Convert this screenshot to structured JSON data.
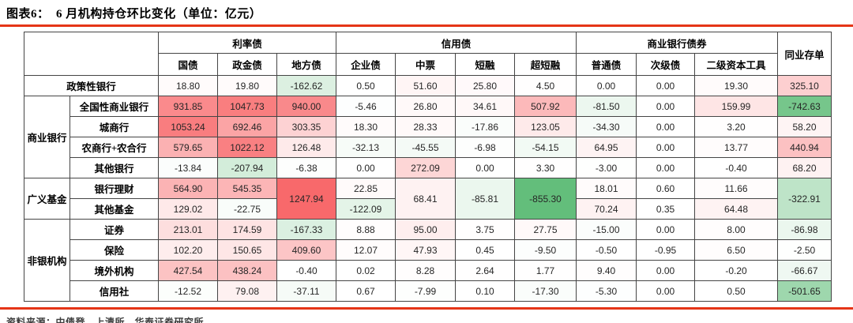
{
  "figure": {
    "title": "图表6：  6 月机构持仓环比变化（单位：亿元）",
    "source": "资料来源：中债登，上清所，华泰证券研究所",
    "rule_color": "#E53517"
  },
  "heatmap": {
    "positive_color": "#F8696B",
    "negative_color": "#63BE7B",
    "neutral_color": "#FFFFFF",
    "max_positive": 1247.94,
    "max_negative": -855.3
  },
  "table": {
    "col_groups": [
      {
        "label": "利率债",
        "span": 3
      },
      {
        "label": "信用债",
        "span": 4
      },
      {
        "label": "商业银行债券",
        "span": 3
      }
    ],
    "ncd_header": "同业存单",
    "sub_headers": [
      "国债",
      "政金债",
      "地方债",
      "企业债",
      "中票",
      "短融",
      "超短融",
      "普通债",
      "次级债",
      "二级资本工具"
    ],
    "rows": [
      {
        "label": "政策性银行",
        "label_colspan": 2,
        "values": [
          18.8,
          19.8,
          -162.62,
          0.5,
          51.6,
          25.8,
          4.5,
          0.0,
          0.0,
          19.3,
          325.1
        ]
      },
      {
        "group": {
          "label": "商业银行",
          "rowspan": 4
        },
        "label": "全国性商业银行",
        "values": [
          931.85,
          1047.73,
          940.0,
          -5.46,
          26.8,
          34.61,
          507.92,
          -81.5,
          0.0,
          159.99,
          -742.63
        ]
      },
      {
        "label": "城商行",
        "values": [
          1053.24,
          692.46,
          303.35,
          18.3,
          28.33,
          -17.86,
          123.05,
          -34.3,
          0.0,
          3.2,
          58.2
        ]
      },
      {
        "label": "农商行+农合行",
        "values": [
          579.65,
          1022.12,
          126.48,
          -32.13,
          -45.55,
          -6.98,
          -54.15,
          64.95,
          0.0,
          13.77,
          440.94
        ]
      },
      {
        "label": "其他银行",
        "values": [
          -13.84,
          -207.94,
          -6.38,
          0.0,
          272.09,
          0.0,
          3.3,
          -3.0,
          0.0,
          -0.4,
          68.2
        ]
      },
      {
        "group": {
          "label": "广义基金",
          "rowspan": 2
        },
        "label": "银行理财",
        "values": [
          564.9,
          545.35,
          {
            "v": 1247.94,
            "rowspan": 2
          },
          22.85,
          {
            "v": 68.41,
            "rowspan": 2
          },
          {
            "v": -85.81,
            "rowspan": 2
          },
          {
            "v": -855.3,
            "rowspan": 2
          },
          18.01,
          0.6,
          11.66,
          {
            "v": -322.91,
            "rowspan": 2
          }
        ]
      },
      {
        "label": "其他基金",
        "values": [
          129.02,
          -22.75,
          null,
          -122.09,
          null,
          null,
          null,
          70.24,
          0.35,
          64.48,
          null
        ]
      },
      {
        "group": {
          "label": "非银机构",
          "rowspan": 4
        },
        "label": "证券",
        "values": [
          213.01,
          174.59,
          -167.33,
          8.88,
          95.0,
          3.75,
          27.75,
          -15.0,
          0.0,
          8.0,
          -86.98
        ]
      },
      {
        "label": "保险",
        "values": [
          102.2,
          150.65,
          409.6,
          12.07,
          47.93,
          0.45,
          -9.5,
          -0.5,
          -0.95,
          6.5,
          -2.5
        ]
      },
      {
        "label": "境外机构",
        "values": [
          427.54,
          438.24,
          -0.4,
          0.02,
          8.28,
          2.64,
          1.77,
          9.4,
          0.0,
          -0.2,
          -66.67
        ]
      },
      {
        "label": "信用社",
        "values": [
          -12.52,
          79.08,
          -37.11,
          0.67,
          -7.99,
          0.1,
          -17.3,
          -5.3,
          0.0,
          0.5,
          -501.65
        ]
      }
    ]
  }
}
